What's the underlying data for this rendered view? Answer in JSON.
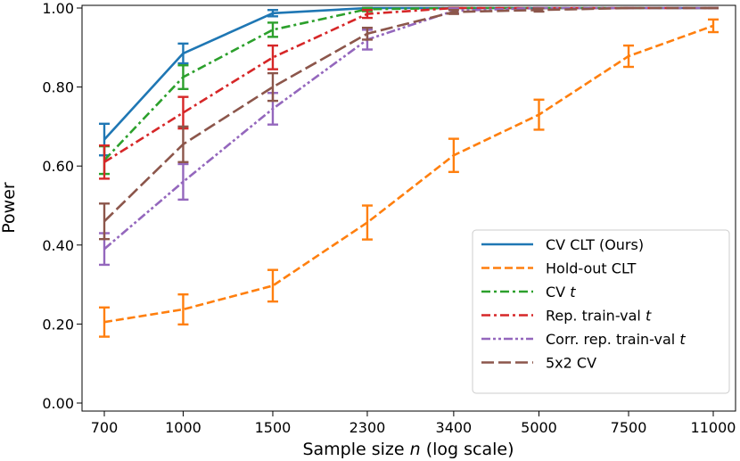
{
  "chart_data": {
    "type": "line",
    "title": "",
    "xlabel": "Sample size n (log scale)",
    "xlabel_parts": [
      "Sample size ",
      "n",
      " (log scale)"
    ],
    "ylabel": "Power",
    "x_scale": "log",
    "x": [
      700,
      1000,
      1500,
      2300,
      3400,
      5000,
      7500,
      11000
    ],
    "x_tick_labels": [
      "700",
      "1000",
      "1500",
      "2300",
      "3400",
      "5000",
      "7500",
      "11000"
    ],
    "ylim": [
      0.0,
      1.0
    ],
    "y_ticks": [
      0.0,
      0.2,
      0.4,
      0.6,
      0.8,
      1.0
    ],
    "y_tick_labels": [
      "0.00",
      "0.20",
      "0.40",
      "0.60",
      "0.80",
      "1.00"
    ],
    "grid": false,
    "legend_position": "lower-right",
    "series": [
      {
        "name": "CV CLT (Ours)",
        "legend_parts": [
          "CV CLT (Ours)"
        ],
        "color": "#1f77b4",
        "dash": "solid",
        "values": [
          0.667,
          0.885,
          0.987,
          1.0,
          1.0,
          1.0,
          1.0,
          1.0
        ],
        "errors": [
          0.04,
          0.025,
          0.008,
          0.0,
          0.0,
          0.0,
          0.0,
          0.0
        ]
      },
      {
        "name": "Hold-out CLT",
        "legend_parts": [
          "Hold-out CLT"
        ],
        "color": "#ff7f0e",
        "dash": "dashed",
        "values": [
          0.205,
          0.237,
          0.297,
          0.457,
          0.627,
          0.73,
          0.878,
          0.955
        ],
        "errors": [
          0.037,
          0.038,
          0.04,
          0.043,
          0.042,
          0.038,
          0.027,
          0.016
        ]
      },
      {
        "name": "CV t",
        "legend_parts": [
          "CV ",
          "t"
        ],
        "color": "#2ca02c",
        "dash": "dashdot",
        "values": [
          0.615,
          0.825,
          0.945,
          0.997,
          1.0,
          1.0,
          1.0,
          1.0
        ],
        "errors": [
          0.035,
          0.03,
          0.018,
          0.005,
          0.0,
          0.0,
          0.0,
          0.0
        ]
      },
      {
        "name": "Rep. train-val t",
        "legend_parts": [
          "Rep. train-val ",
          "t"
        ],
        "color": "#d62728",
        "dash": "dashdot",
        "values": [
          0.61,
          0.735,
          0.875,
          0.985,
          1.0,
          1.0,
          1.0,
          1.0
        ],
        "errors": [
          0.042,
          0.04,
          0.03,
          0.01,
          0.0,
          0.0,
          0.0,
          0.0
        ]
      },
      {
        "name": "Corr. rep. train-val t",
        "legend_parts": [
          "Corr. rep. train-val ",
          "t"
        ],
        "color": "#9467bd",
        "dash": "dashdotdot",
        "values": [
          0.39,
          0.56,
          0.745,
          0.92,
          0.993,
          1.0,
          1.0,
          1.0
        ],
        "errors": [
          0.04,
          0.045,
          0.04,
          0.025,
          0.006,
          0.0,
          0.0,
          0.0
        ]
      },
      {
        "name": "5x2 CV",
        "legend_parts": [
          "5x2 CV"
        ],
        "color": "#8c564b",
        "dash": "longdash",
        "values": [
          0.46,
          0.655,
          0.8,
          0.935,
          0.99,
          0.995,
          1.0,
          1.0
        ],
        "errors": [
          0.045,
          0.045,
          0.035,
          0.015,
          0.005,
          0.004,
          0.0,
          0.0
        ]
      }
    ]
  }
}
